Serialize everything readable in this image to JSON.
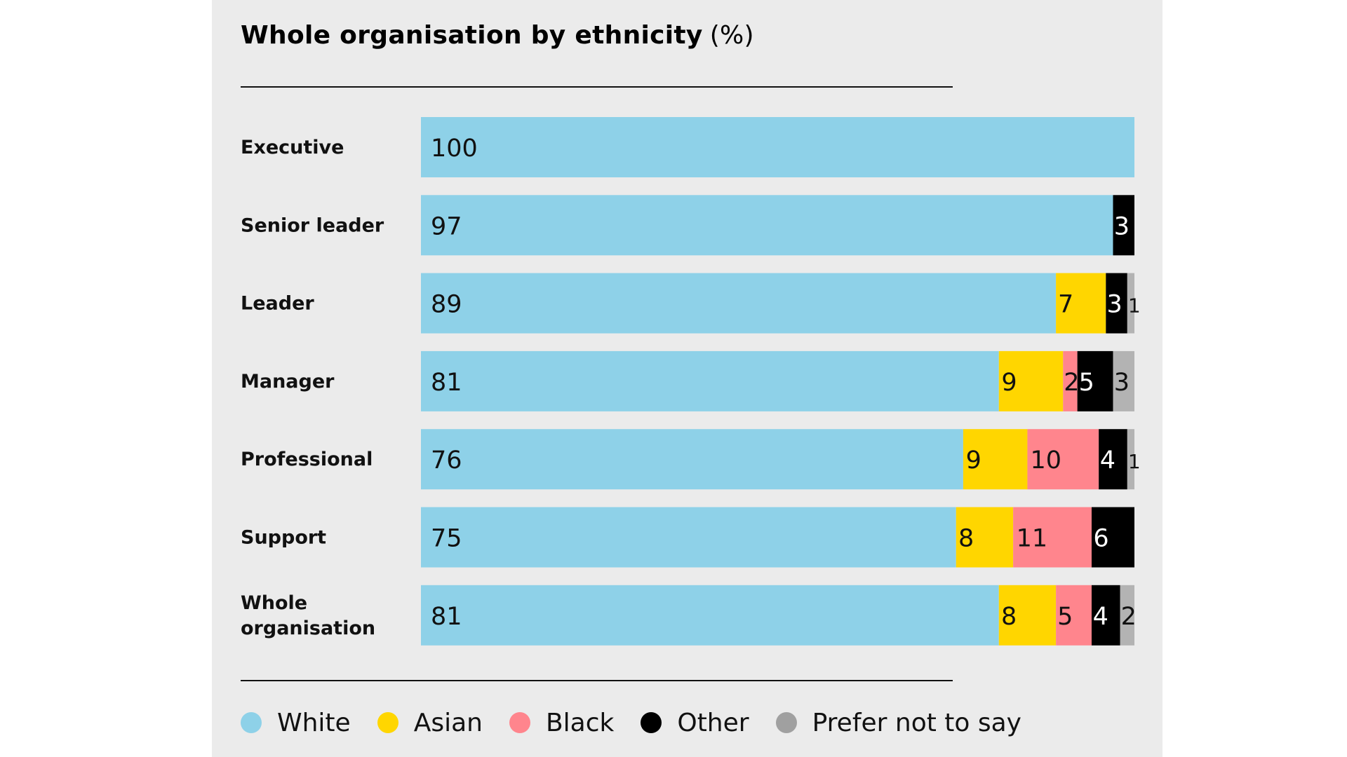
{
  "chart_data": {
    "type": "bar",
    "orientation": "horizontal",
    "stacked": true,
    "title": "Whole organisation by ethnicity",
    "unit_label": "(%)",
    "categories": [
      "Executive",
      "Senior leader",
      "Leader",
      "Manager",
      "Professional",
      "Support",
      "Whole organisation"
    ],
    "series": [
      {
        "name": "White",
        "color": "#8ed1e8",
        "label_color": "#111111",
        "values": [
          100,
          97,
          89,
          81,
          76,
          75,
          81
        ]
      },
      {
        "name": "Asian",
        "color": "#ffd600",
        "label_color": "#111111",
        "values": [
          0,
          0,
          7,
          9,
          9,
          8,
          8
        ]
      },
      {
        "name": "Black",
        "color": "#ff858d",
        "label_color": "#111111",
        "values": [
          0,
          0,
          0,
          2,
          10,
          11,
          5
        ]
      },
      {
        "name": "Other",
        "color": "#000000",
        "label_color": "#ffffff",
        "values": [
          0,
          3,
          3,
          5,
          4,
          6,
          4
        ]
      },
      {
        "name": "Prefer not to say",
        "color": "#b3b3b3",
        "label_color": "#111111",
        "values": [
          0,
          0,
          1,
          3,
          1,
          0,
          2
        ]
      }
    ],
    "xlim": [
      0,
      100
    ],
    "legend_position": "bottom",
    "grid": false
  }
}
